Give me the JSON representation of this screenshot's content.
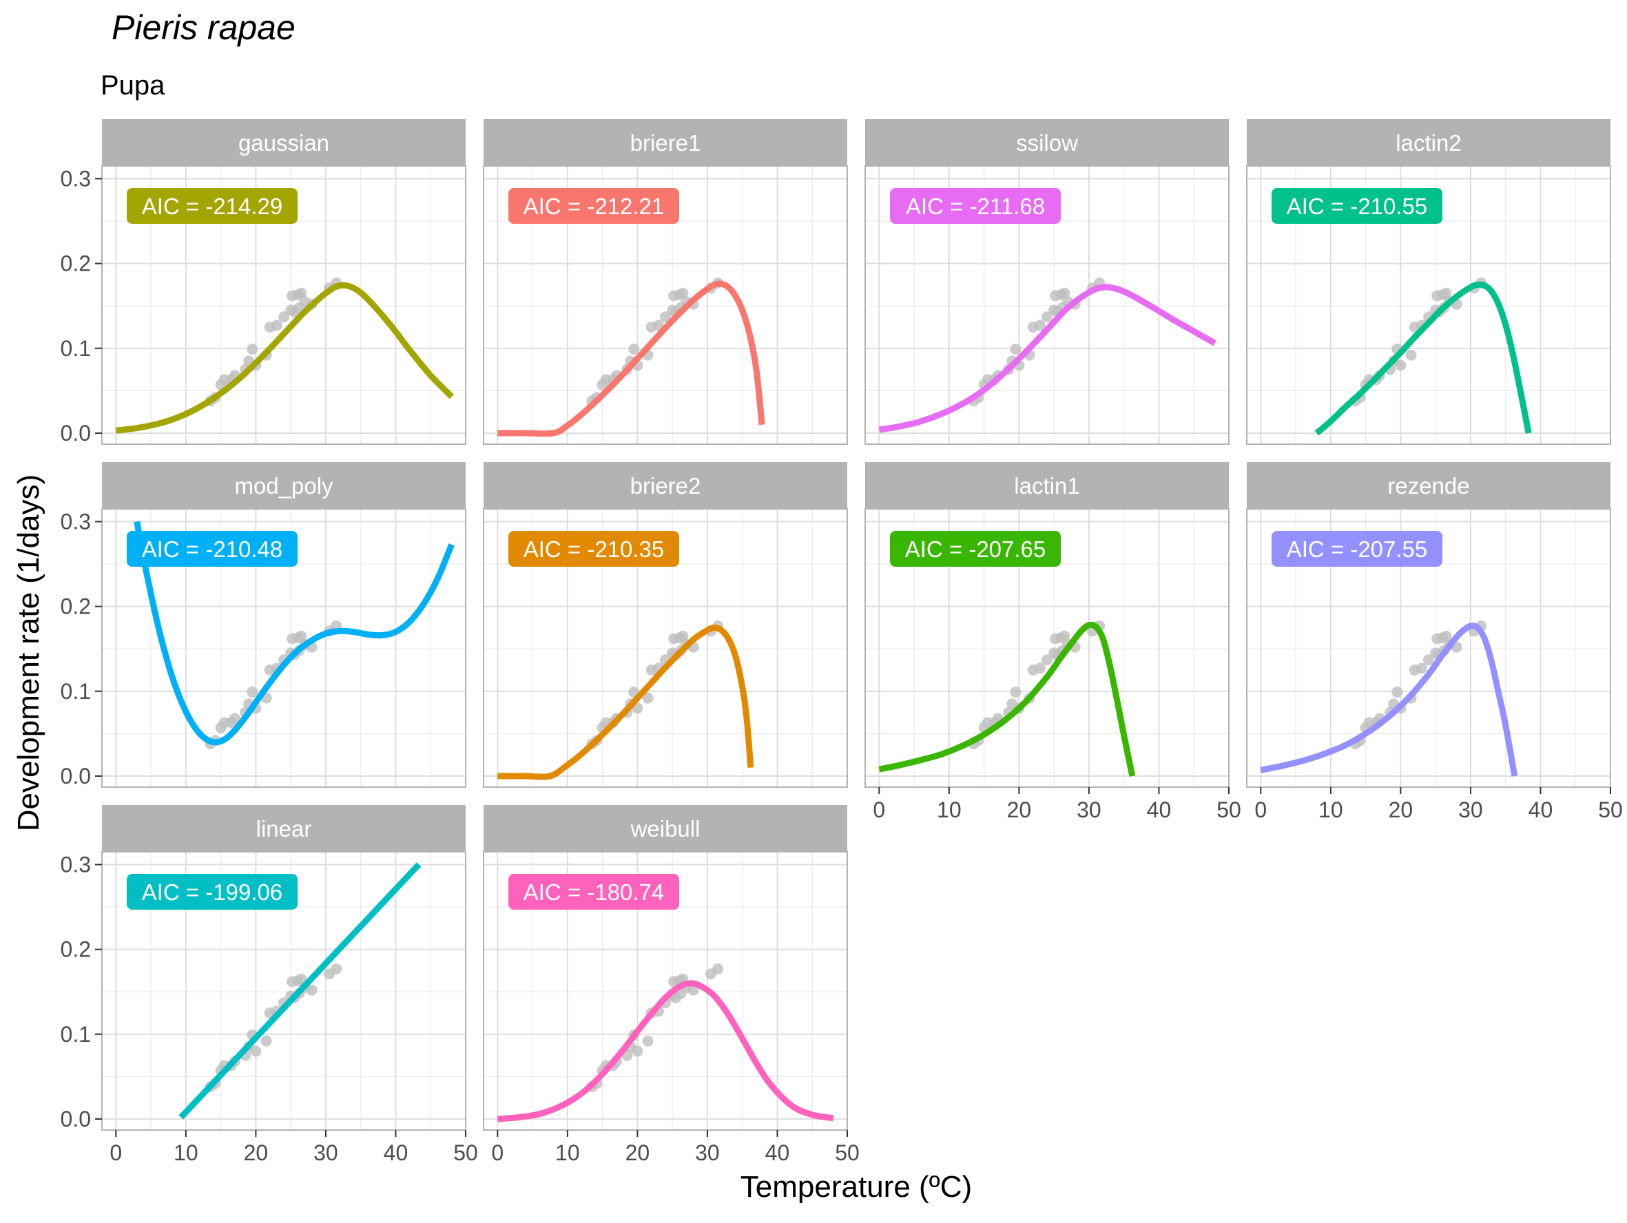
{
  "chart_data": {
    "type": "line",
    "title": "Pieris rapae",
    "subtitle": "Pupa",
    "xlabel": "Temperature (ºC)",
    "ylabel": "Development rate (1/days)",
    "xlim": [
      -2,
      50
    ],
    "ylim": [
      -0.013,
      0.315
    ],
    "x_ticks": [
      0,
      10,
      20,
      30,
      40,
      50
    ],
    "y_ticks": [
      0.0,
      0.1,
      0.2,
      0.3
    ],
    "y_tick_labels": [
      "0.0",
      "0.1",
      "0.2",
      "0.3"
    ],
    "grid": true,
    "observations": {
      "x": [
        13.5,
        14.2,
        15.0,
        15.5,
        16.5,
        17.0,
        18.5,
        19.0,
        19.5,
        20.0,
        21.5,
        22.0,
        23.0,
        24.0,
        25.0,
        25.2,
        25.5,
        26.0,
        26.2,
        26.5,
        27.0,
        28.0,
        30.5,
        31.5
      ],
      "y": [
        0.038,
        0.042,
        0.057,
        0.063,
        0.063,
        0.068,
        0.075,
        0.085,
        0.099,
        0.08,
        0.092,
        0.125,
        0.127,
        0.137,
        0.145,
        0.162,
        0.143,
        0.163,
        0.148,
        0.165,
        0.155,
        0.152,
        0.171,
        0.177
      ]
    },
    "panels": [
      {
        "name": "gaussian",
        "label": "AIC = -214.29",
        "color": "#A3A500",
        "x": [
          0,
          3,
          6,
          9,
          12,
          15,
          18,
          21,
          24,
          27,
          30,
          32,
          34,
          36,
          39,
          42,
          45,
          48
        ],
        "y": [
          0.003,
          0.006,
          0.011,
          0.019,
          0.031,
          0.047,
          0.067,
          0.091,
          0.117,
          0.143,
          0.165,
          0.174,
          0.171,
          0.158,
          0.13,
          0.098,
          0.068,
          0.043
        ]
      },
      {
        "name": "briere1",
        "label": "AIC = -212.21",
        "color": "#F8766D",
        "x": [
          0,
          4,
          8,
          10,
          12,
          14,
          16,
          18,
          20,
          22,
          24,
          26,
          28,
          30,
          31,
          32,
          33,
          34,
          35,
          36,
          37,
          37.8
        ],
        "y": [
          0.0,
          0.0,
          0.0,
          0.009,
          0.022,
          0.037,
          0.053,
          0.07,
          0.088,
          0.106,
          0.124,
          0.141,
          0.157,
          0.17,
          0.175,
          0.176,
          0.172,
          0.162,
          0.145,
          0.118,
          0.075,
          0.01
        ]
      },
      {
        "name": "ssilow",
        "label": "AIC = -211.68",
        "color": "#E76BF3",
        "x": [
          0,
          3,
          6,
          9,
          12,
          15,
          18,
          21,
          24,
          27,
          30,
          32,
          34,
          36,
          39,
          42,
          45,
          48
        ],
        "y": [
          0.004,
          0.008,
          0.014,
          0.023,
          0.035,
          0.051,
          0.072,
          0.096,
          0.122,
          0.148,
          0.166,
          0.172,
          0.17,
          0.163,
          0.149,
          0.134,
          0.12,
          0.106
        ]
      },
      {
        "name": "lactin2",
        "label": "AIC = -210.55",
        "color": "#00C08B",
        "x": [
          8,
          10,
          12,
          14,
          16,
          18,
          20,
          22,
          24,
          26,
          28,
          30,
          31,
          32,
          33,
          34,
          35,
          36,
          37,
          38.3
        ],
        "y": [
          0.0,
          0.014,
          0.03,
          0.045,
          0.061,
          0.078,
          0.095,
          0.113,
          0.13,
          0.147,
          0.161,
          0.172,
          0.175,
          0.174,
          0.167,
          0.152,
          0.128,
          0.095,
          0.055,
          0.0
        ]
      },
      {
        "name": "mod_poly",
        "label": "AIC = -210.48",
        "color": "#00B0F6",
        "x": [
          3,
          4,
          5,
          6,
          7,
          8,
          9,
          10,
          11,
          12,
          13,
          14,
          15,
          16,
          17,
          18,
          19,
          20,
          22,
          24,
          26,
          28,
          30,
          32,
          34,
          36,
          38,
          40,
          42,
          44,
          46,
          48
        ],
        "y": [
          0.3,
          0.255,
          0.215,
          0.178,
          0.146,
          0.118,
          0.095,
          0.076,
          0.061,
          0.05,
          0.043,
          0.04,
          0.041,
          0.046,
          0.054,
          0.064,
          0.075,
          0.087,
          0.11,
          0.131,
          0.148,
          0.16,
          0.168,
          0.171,
          0.17,
          0.167,
          0.166,
          0.17,
          0.182,
          0.203,
          0.233,
          0.273
        ]
      },
      {
        "name": "briere2",
        "label": "AIC = -210.35",
        "color": "#E18A00",
        "x": [
          0,
          4,
          7.5,
          10,
          12,
          14,
          16,
          18,
          20,
          22,
          24,
          26,
          28,
          30,
          31,
          32,
          33,
          34,
          35,
          35.6,
          36.2
        ],
        "y": [
          0.0,
          0.0,
          0.0,
          0.013,
          0.026,
          0.041,
          0.057,
          0.074,
          0.092,
          0.11,
          0.128,
          0.145,
          0.161,
          0.172,
          0.175,
          0.172,
          0.162,
          0.142,
          0.105,
          0.07,
          0.01
        ]
      },
      {
        "name": "lactin1",
        "label": "AIC = -207.65",
        "color": "#39B600",
        "x": [
          0,
          3,
          6,
          9,
          12,
          15,
          18,
          21,
          24,
          26,
          28,
          29,
          30,
          31,
          32,
          33,
          34,
          35,
          36.2
        ],
        "y": [
          0.008,
          0.013,
          0.019,
          0.026,
          0.036,
          0.049,
          0.066,
          0.088,
          0.117,
          0.14,
          0.162,
          0.172,
          0.178,
          0.176,
          0.162,
          0.13,
          0.09,
          0.048,
          0.0
        ]
      },
      {
        "name": "rezende",
        "label": "AIC = -207.55",
        "color": "#9590FF",
        "x": [
          0,
          3,
          6,
          9,
          12,
          15,
          18,
          21,
          24,
          26,
          28,
          29,
          30,
          31,
          32,
          33,
          34,
          35,
          36.3
        ],
        "y": [
          0.007,
          0.012,
          0.018,
          0.026,
          0.036,
          0.05,
          0.068,
          0.091,
          0.12,
          0.143,
          0.164,
          0.172,
          0.177,
          0.175,
          0.162,
          0.135,
          0.098,
          0.06,
          0.0
        ]
      },
      {
        "name": "linear",
        "label": "AIC = -199.06",
        "color": "#00BFC4",
        "x": [
          9.3,
          43.3
        ],
        "y": [
          0.002,
          0.3
        ]
      },
      {
        "name": "weibull",
        "label": "AIC = -180.74",
        "color": "#FF62BC",
        "x": [
          0,
          3,
          6,
          9,
          12,
          15,
          18,
          21,
          24,
          26,
          27.5,
          29,
          31,
          33,
          35,
          37,
          39,
          42,
          45,
          48
        ],
        "y": [
          0.0,
          0.002,
          0.006,
          0.015,
          0.03,
          0.053,
          0.082,
          0.114,
          0.143,
          0.156,
          0.16,
          0.157,
          0.145,
          0.123,
          0.095,
          0.066,
          0.041,
          0.016,
          0.005,
          0.001
        ]
      }
    ]
  }
}
